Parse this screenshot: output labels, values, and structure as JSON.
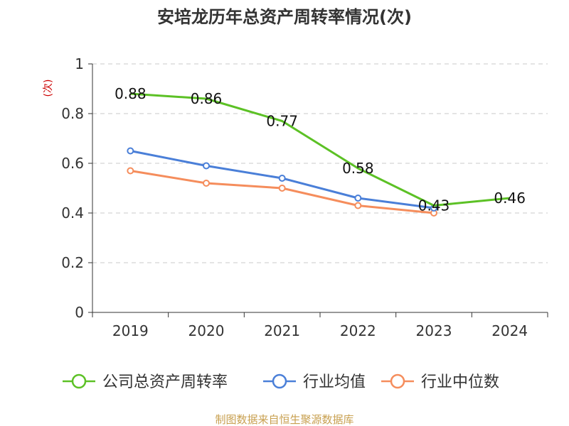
{
  "chart_data": {
    "type": "line",
    "title": "安培龙历年总资产周转率情况(次)",
    "ylabel": "(次)",
    "xlabel": "",
    "categories": [
      "2019",
      "2020",
      "2021",
      "2022",
      "2023",
      "2024"
    ],
    "ylim": [
      0,
      1
    ],
    "yticks": [
      "0",
      "0.2",
      "0.4",
      "0.6",
      "0.8",
      "1"
    ],
    "grid": true,
    "legend_position": "bottom",
    "series": [
      {
        "name": "公司总资产周转率",
        "color": "#5cc125",
        "values": [
          0.88,
          0.86,
          0.77,
          0.58,
          0.43,
          0.46
        ],
        "labels": [
          "0.88",
          "0.86",
          "0.77",
          "0.58",
          "0.43",
          "0.46"
        ],
        "markers": false
      },
      {
        "name": "行业均值",
        "color": "#4a7fd8",
        "values": [
          0.65,
          0.59,
          0.54,
          0.46,
          0.42,
          null
        ],
        "markers": true
      },
      {
        "name": "行业中位数",
        "color": "#f58d5c",
        "values": [
          0.57,
          0.52,
          0.5,
          0.43,
          0.4,
          null
        ],
        "markers": true
      }
    ]
  },
  "source": "制图数据来自恒生聚源数据库"
}
